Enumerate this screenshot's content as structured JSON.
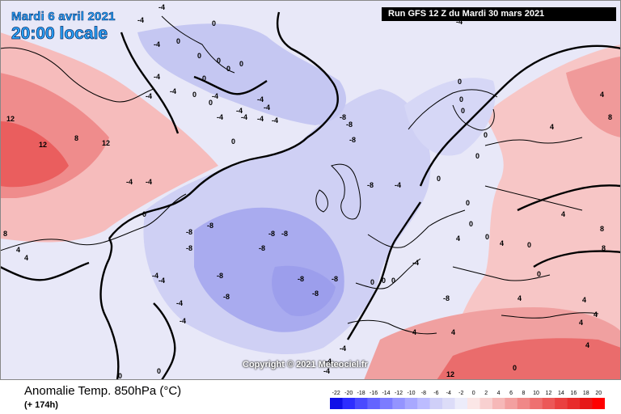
{
  "header": {
    "date": "Mardi 6 avril 2021",
    "time": "20:00 locale",
    "run": "Run GFS 12 Z du Mardi 30 mars 2021"
  },
  "copyright": "Copyright © 2021 Meteociel.fr",
  "footer": {
    "title": "Anomalie Temp. 850hPa (°C)",
    "subtitle": "(+ 174h)"
  },
  "legend": {
    "ticks": [
      "-22",
      "-20",
      "-18",
      "-16",
      "-14",
      "-12",
      "-10",
      "-8",
      "-6",
      "-4",
      "-2",
      "0",
      "2",
      "4",
      "6",
      "8",
      "10",
      "12",
      "14",
      "16",
      "18",
      "20"
    ],
    "colors": [
      "#1010e8",
      "#2d2dff",
      "#4a4aff",
      "#6464ff",
      "#7c7cff",
      "#9494ff",
      "#a8a8ff",
      "#bcbcff",
      "#cfcff8",
      "#dcdcf8",
      "#ececfa",
      "#fbe6e6",
      "#f8d0d0",
      "#f6b8b8",
      "#f3a0a0",
      "#f08888",
      "#ee7070",
      "#ec5858",
      "#ea4040",
      "#e82c2c",
      "#e61818",
      "#ff0000"
    ]
  },
  "map": {
    "contour_labels": [
      "-4",
      "-4",
      "-4",
      "0",
      "0",
      "0",
      "0",
      "0",
      "0",
      "0",
      "0",
      "0",
      "-4",
      "-4",
      "-4",
      "-4",
      "-4",
      "-4",
      "-4",
      "-4",
      "-8",
      "-8",
      "-8",
      "-8",
      "-4",
      "-4",
      "-4",
      "12",
      "12",
      "8",
      "12",
      "-4",
      "-4",
      "0",
      "0",
      "8",
      "4",
      "4",
      "-8",
      "-8",
      "-8",
      "-8",
      "-8",
      "-8",
      "-8",
      "-8",
      "-8",
      "-8",
      "-8",
      "-4",
      "-4",
      "-4",
      "-4",
      "0",
      "0",
      "0",
      "-4",
      "-4",
      "0",
      "0",
      "0",
      "0",
      "0",
      "0",
      "0",
      "0",
      "0",
      "4",
      "4",
      "4",
      "4",
      "4",
      "8",
      "8",
      "8",
      "4",
      "4",
      "4",
      "4",
      "4",
      "12",
      "0",
      "-4",
      "4",
      "4",
      "0",
      "0",
      "0",
      "0",
      "-4",
      "-4",
      "-4",
      "-8"
    ]
  }
}
